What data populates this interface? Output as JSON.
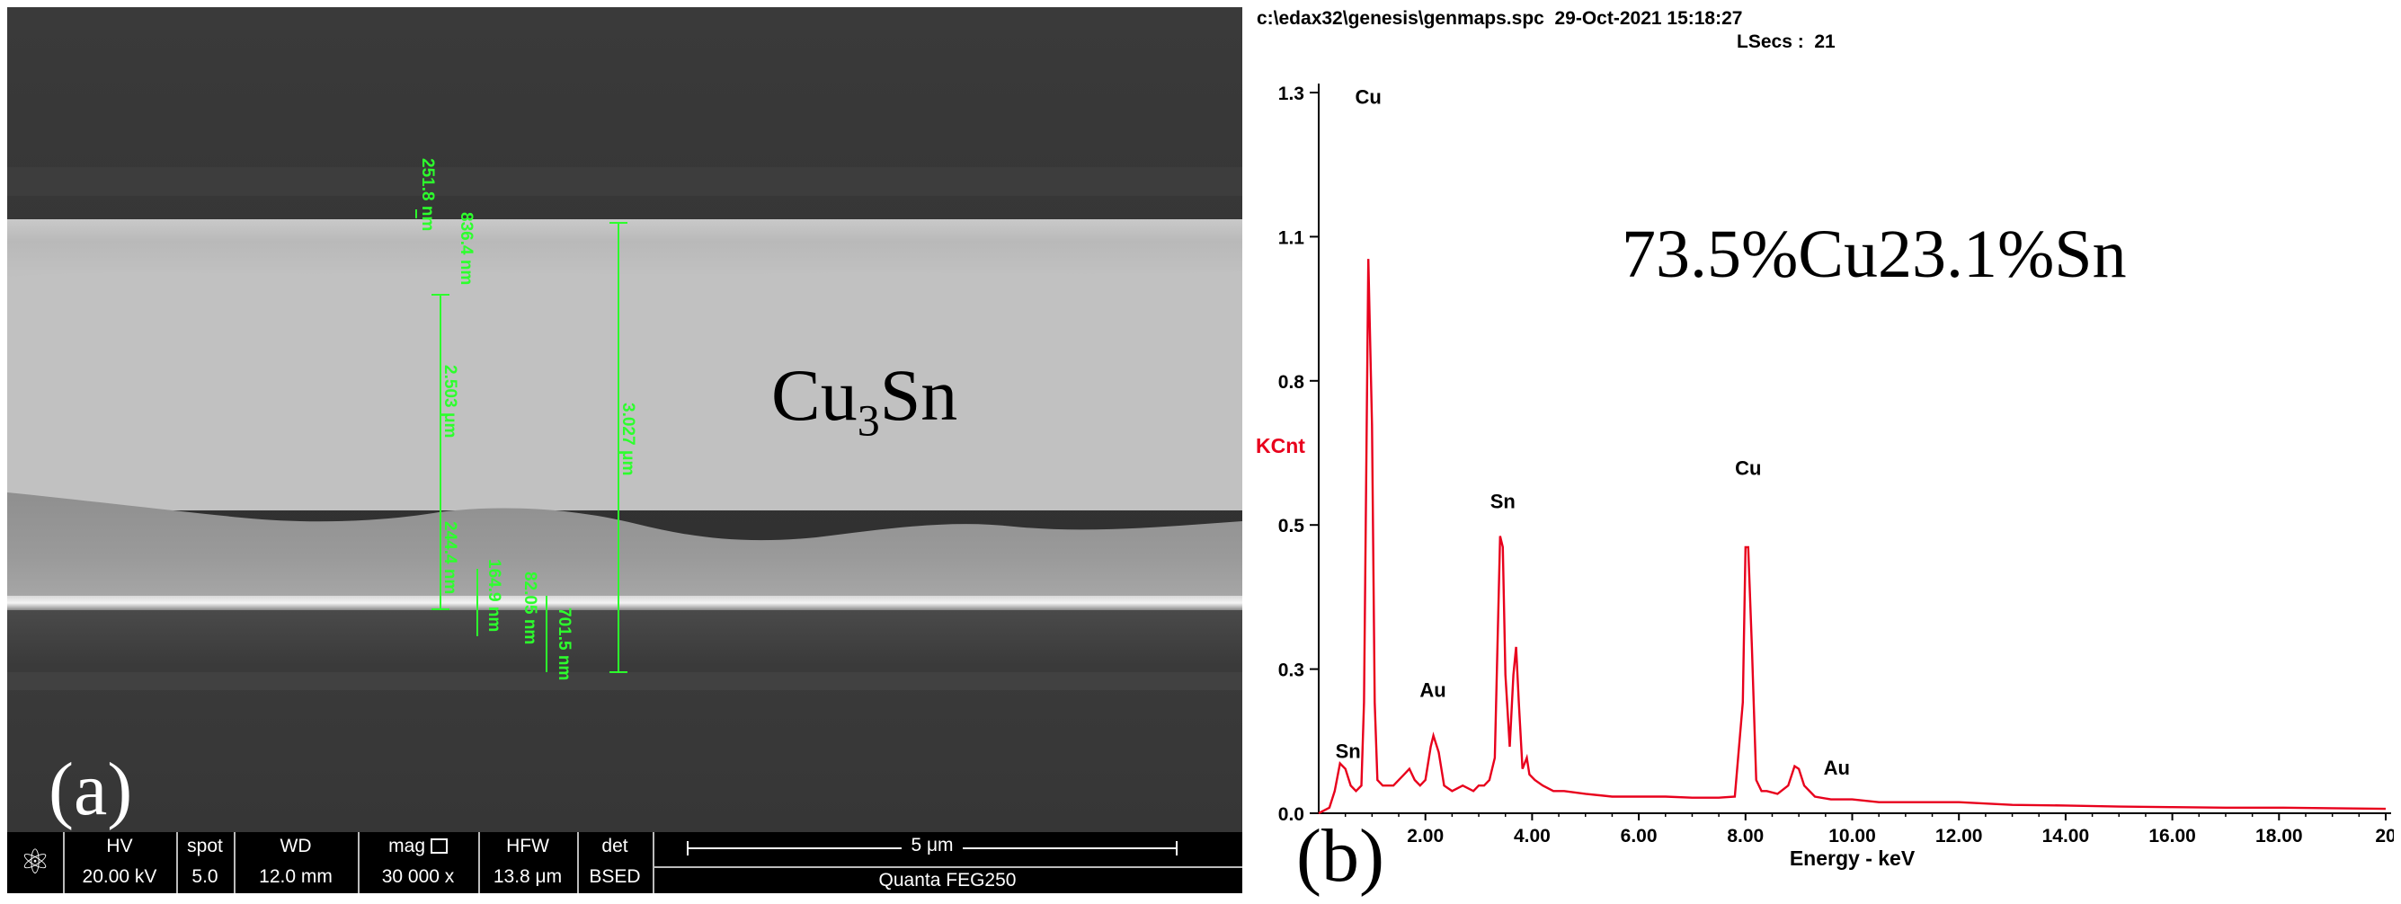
{
  "panel_a": {
    "panel_letter": "(a)",
    "phase_label_main": "Cu",
    "phase_label_sub": "3",
    "phase_label_tail": "Sn",
    "measurements": [
      "251.8 nm",
      "836.4 nm",
      "2.503 μm",
      "3.027 μm",
      "244.4 nm",
      "164.9 nm",
      "82.05 nm",
      "701.5 nm"
    ],
    "databar": {
      "logo_icon": "fei-atom-icon",
      "hv_label": "HV",
      "hv_value": "20.00 kV",
      "spot_label": "spot",
      "spot_value": "5.0",
      "wd_label": "WD",
      "wd_value": "12.0 mm",
      "mag_label": "mag",
      "mag_value": "30 000 x",
      "hfw_label": "HFW",
      "hfw_value": "13.8 μm",
      "det_label": "det",
      "det_value": "BSED",
      "scale_bar": "5 μm",
      "instrument": "Quanta FEG250"
    }
  },
  "panel_b": {
    "panel_letter": "(b)",
    "file_path": "c:\\edax32\\genesis\\genmaps.spc",
    "date_time": "29-Oct-2021 15:18:27",
    "lsecs_label": "LSecs :",
    "lsecs_value": "21",
    "composition": "73.5%Cu23.1%Sn",
    "colors": {
      "spectrum": "#e8001c",
      "ylabel": "#e8001c",
      "axis": "#000000"
    },
    "chart_data": {
      "type": "line",
      "xlabel": "Energy - keV",
      "ylabel": "KCnt",
      "xlim": [
        0,
        20
      ],
      "ylim": [
        0,
        1.3
      ],
      "x_ticks": [
        "2.00",
        "4.00",
        "6.00",
        "8.00",
        "10.00",
        "12.00",
        "14.00",
        "16.00",
        "18.00",
        "20"
      ],
      "y_ticks": [
        "0.0",
        "0.3",
        "0.5",
        "0.8",
        "1.1",
        "1.3"
      ],
      "y_tick_values": [
        0,
        0.26,
        0.52,
        0.78,
        1.04,
        1.3
      ],
      "peak_labels": [
        {
          "text": "Sn",
          "x": 0.55,
          "y": 0.1
        },
        {
          "text": "Cu",
          "x": 0.93,
          "y": 1.28
        },
        {
          "text": "Au",
          "x": 2.14,
          "y": 0.21
        },
        {
          "text": "Sn",
          "x": 3.45,
          "y": 0.55
        },
        {
          "text": "Cu",
          "x": 8.05,
          "y": 0.61
        },
        {
          "text": "Au",
          "x": 9.71,
          "y": 0.07
        }
      ],
      "series": [
        {
          "x": [
            0.0,
            0.2,
            0.3,
            0.4,
            0.5,
            0.6,
            0.7,
            0.8,
            0.85,
            0.93,
            1.0,
            1.05,
            1.1,
            1.2,
            1.4,
            1.6,
            1.7,
            1.8,
            1.9,
            2.0,
            2.1,
            2.15,
            2.25,
            2.35,
            2.5,
            2.7,
            2.9,
            3.0,
            3.1,
            3.2,
            3.3,
            3.4,
            3.45,
            3.5,
            3.58,
            3.65,
            3.7,
            3.75,
            3.82,
            3.9,
            3.95,
            4.05,
            4.2,
            4.4,
            4.6,
            5.0,
            5.5,
            6.0,
            6.5,
            7.0,
            7.5,
            7.8,
            7.95,
            8.0,
            8.05,
            8.12,
            8.2,
            8.3,
            8.4,
            8.6,
            8.8,
            8.92,
            9.0,
            9.1,
            9.3,
            9.6,
            10.0,
            10.5,
            11.0,
            12.0,
            13.0,
            14.0,
            15.0,
            16.0,
            17.0,
            18.0,
            19.0,
            20.0
          ],
          "y": [
            0.0,
            0.01,
            0.04,
            0.09,
            0.08,
            0.05,
            0.04,
            0.05,
            0.2,
            1.0,
            0.7,
            0.2,
            0.06,
            0.05,
            0.05,
            0.07,
            0.08,
            0.06,
            0.05,
            0.06,
            0.12,
            0.14,
            0.11,
            0.05,
            0.04,
            0.05,
            0.04,
            0.05,
            0.05,
            0.06,
            0.1,
            0.5,
            0.48,
            0.25,
            0.12,
            0.25,
            0.3,
            0.2,
            0.08,
            0.1,
            0.07,
            0.06,
            0.05,
            0.04,
            0.04,
            0.035,
            0.03,
            0.03,
            0.03,
            0.028,
            0.028,
            0.03,
            0.2,
            0.48,
            0.48,
            0.3,
            0.06,
            0.04,
            0.04,
            0.035,
            0.05,
            0.085,
            0.08,
            0.05,
            0.03,
            0.025,
            0.025,
            0.02,
            0.02,
            0.02,
            0.015,
            0.014,
            0.012,
            0.011,
            0.01,
            0.01,
            0.009,
            0.008
          ]
        }
      ]
    }
  }
}
